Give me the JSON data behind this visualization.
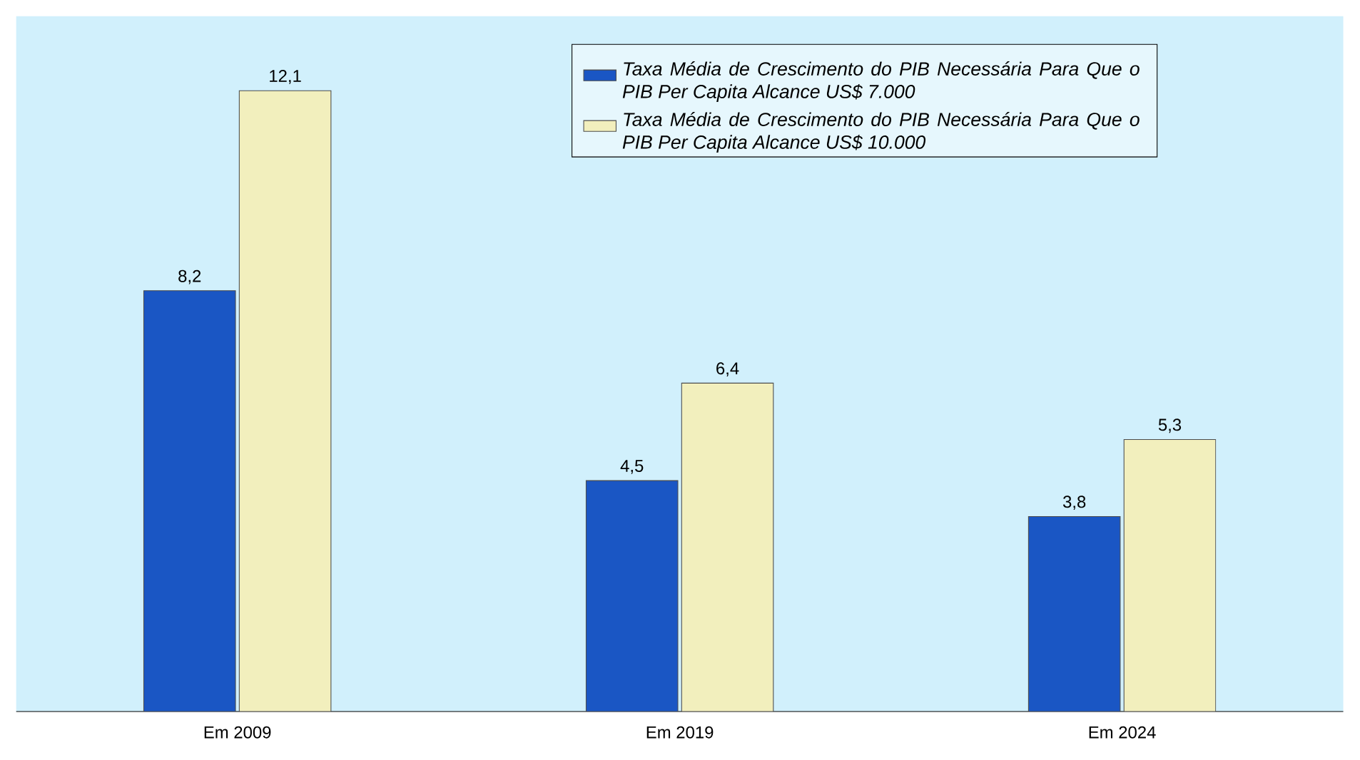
{
  "chart_data": {
    "type": "bar",
    "categories": [
      "Em  2009",
      "Em  2019",
      "Em  2024"
    ],
    "series": [
      {
        "name": "Taxa Média de Crescimento do PIB Necessária Para Que o PIB Per Capita Alcance US$ 7.000",
        "color": "#1a56c4",
        "values": [
          8.2,
          4.5,
          3.8
        ],
        "value_labels": [
          "8,2",
          "4,5",
          "3,8"
        ]
      },
      {
        "name": "Taxa Média de Crescimento do PIB Necessária Para Que o PIB Per Capita Alcance US$ 10.000",
        "color": "#f2efbd",
        "values": [
          12.1,
          6.4,
          5.3
        ],
        "value_labels": [
          "12,1",
          "6,4",
          "5,3"
        ]
      }
    ],
    "legend": "top right",
    "grid": false
  }
}
